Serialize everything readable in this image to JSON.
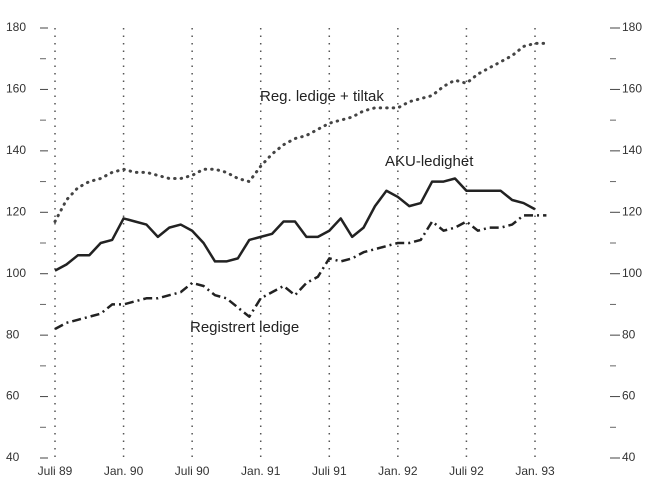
{
  "chart_data": {
    "type": "line",
    "categories": [
      "Juli 89",
      null,
      null,
      null,
      null,
      null,
      "Jan. 90",
      null,
      null,
      null,
      null,
      null,
      "Juli 90",
      null,
      null,
      null,
      null,
      null,
      "Jan. 91",
      null,
      null,
      null,
      null,
      null,
      "Juli 91",
      null,
      null,
      null,
      null,
      null,
      "Jan. 92",
      null,
      null,
      null,
      null,
      null,
      "Juli 92",
      null,
      null,
      null,
      null,
      null,
      "Jan. 93",
      null
    ],
    "series": [
      {
        "name": "Reg. ledige + tiltak",
        "color": "#444",
        "style": "dotted",
        "values": [
          117,
          124,
          128,
          130,
          131,
          133,
          134,
          133,
          133,
          132,
          131,
          131,
          132,
          134,
          134,
          133,
          131,
          130,
          135,
          139,
          142,
          144,
          145,
          147,
          149,
          150,
          151,
          153,
          154,
          154,
          154,
          156,
          157,
          158,
          161,
          163,
          162,
          165,
          167,
          169,
          171,
          174,
          175,
          175
        ]
      },
      {
        "name": "AKU-ledighet",
        "color": "#222",
        "style": "solid",
        "values": [
          101,
          103,
          106,
          106,
          110,
          111,
          118,
          117,
          116,
          112,
          115,
          116,
          114,
          110,
          104,
          104,
          105,
          111,
          112,
          113,
          117,
          117,
          112,
          112,
          114,
          118,
          112,
          115,
          122,
          127,
          125,
          122,
          123,
          130,
          130,
          131,
          127,
          127,
          127,
          127,
          124,
          123,
          121,
          null
        ]
      },
      {
        "name": "Registrert ledige",
        "color": "#222",
        "style": "dashdot",
        "values": [
          82,
          84,
          85,
          86,
          87,
          90,
          90,
          91,
          92,
          92,
          93,
          94,
          97,
          96,
          93,
          92,
          89,
          86,
          92,
          94,
          96,
          93,
          97,
          99,
          105,
          104,
          105,
          107,
          108,
          109,
          110,
          110,
          111,
          117,
          114,
          115,
          117,
          114,
          115,
          115,
          116,
          119,
          119,
          119
        ]
      }
    ],
    "annotations": [
      "Reg. ledige + tiltak",
      "AKU-ledighet",
      "Registrert ledige"
    ],
    "ylim": [
      40,
      180
    ],
    "yticks": [
      40,
      60,
      80,
      100,
      120,
      140,
      160,
      180
    ],
    "minor_yticks": [
      50,
      70,
      90,
      110,
      130,
      150,
      170
    ],
    "grid": "x-dotted",
    "right_axis": true
  }
}
